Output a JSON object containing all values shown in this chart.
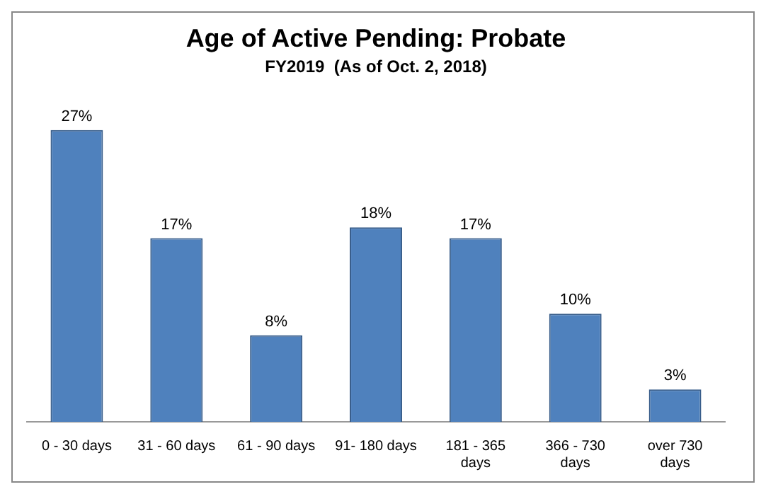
{
  "chart_data": {
    "type": "bar",
    "title": "Age of Active Pending: Probate",
    "subtitle": "FY2019  (As of Oct. 2, 2018)",
    "categories": [
      "0 - 30 days",
      "31 - 60 days",
      "61 - 90 days",
      "91- 180 days",
      "181 - 365 days",
      "366 - 730 days",
      "over 730 days"
    ],
    "values": [
      27,
      17,
      8,
      18,
      17,
      10,
      3
    ],
    "value_labels": [
      "27%",
      "17%",
      "8%",
      "18%",
      "17%",
      "10%",
      "3%"
    ],
    "color": "#4f81bd",
    "grid": false,
    "legend": false
  }
}
